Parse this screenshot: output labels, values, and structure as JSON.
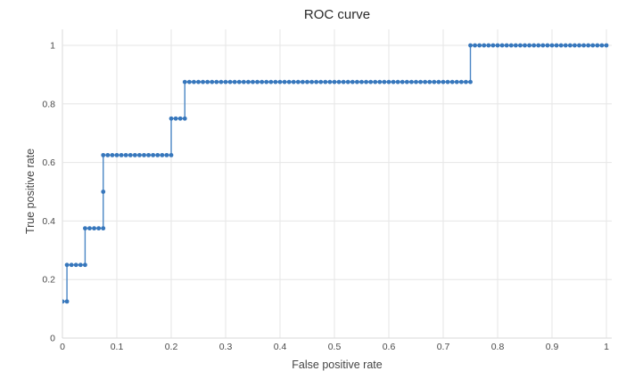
{
  "chart": {
    "title": "ROC curve",
    "x_axis": {
      "label": "False positive rate",
      "ticks": [
        "0",
        "0.1",
        "0.2",
        "0.3",
        "0.4",
        "0.5",
        "0.6",
        "0.7",
        "0.8",
        "0.9",
        "1"
      ],
      "tick_values": [
        0,
        0.1,
        0.2,
        0.3,
        0.4,
        0.5,
        0.6,
        0.7,
        0.8,
        0.9,
        1
      ]
    },
    "y_axis": {
      "label": "True positive rate",
      "ticks": [
        "0",
        "0.2",
        "0.4",
        "0.6",
        "0.8",
        "1"
      ],
      "tick_values": [
        0,
        0.2,
        0.4,
        0.6,
        0.8,
        1
      ]
    },
    "colors": {
      "marker": "#3777bc",
      "line": "#4a86c5",
      "gridline": "#e6e6e6",
      "zeroline": "#d9d9d9",
      "title_text": "#2a2a2a",
      "axis_text": "#4a4a4a",
      "background": "#ffffff"
    }
  },
  "chart_data": {
    "type": "line",
    "subtype": "roc-step-curve-with-markers",
    "title": "ROC curve",
    "xlabel": "False positive rate",
    "ylabel": "True positive rate",
    "xlim": [
      0,
      1.02
    ],
    "ylim": [
      0,
      1.055
    ],
    "grid": true,
    "legend": false,
    "marker_every_fpr_step": true,
    "fpr_step_denominator": 120,
    "tpr_step_denominator": 8,
    "runs": [
      {
        "tpr": 0.125,
        "k_from": 0,
        "k_to": 1,
        "fpr_from": 0.0,
        "fpr_to": 0.0083
      },
      {
        "tpr": 0.25,
        "k_from": 1,
        "k_to": 5,
        "fpr_from": 0.0083,
        "fpr_to": 0.0417
      },
      {
        "tpr": 0.375,
        "k_from": 5,
        "k_to": 9,
        "fpr_from": 0.0417,
        "fpr_to": 0.075
      },
      {
        "tpr": 0.5,
        "k_from": 9,
        "k_to": 9,
        "fpr_from": 0.075,
        "fpr_to": 0.075
      },
      {
        "tpr": 0.625,
        "k_from": 9,
        "k_to": 24,
        "fpr_from": 0.075,
        "fpr_to": 0.2
      },
      {
        "tpr": 0.75,
        "k_from": 24,
        "k_to": 27,
        "fpr_from": 0.2,
        "fpr_to": 0.225
      },
      {
        "tpr": 0.875,
        "k_from": 27,
        "k_to": 90,
        "fpr_from": 0.225,
        "fpr_to": 0.75
      },
      {
        "tpr": 1.0,
        "k_from": 90,
        "k_to": 120,
        "fpr_from": 0.75,
        "fpr_to": 1.0
      }
    ],
    "step_corner_points": [
      [
        0.0,
        0.125
      ],
      [
        0.0083,
        0.25
      ],
      [
        0.0417,
        0.375
      ],
      [
        0.075,
        0.5
      ],
      [
        0.075,
        0.625
      ],
      [
        0.2,
        0.75
      ],
      [
        0.225,
        0.875
      ],
      [
        0.75,
        1.0
      ],
      [
        1.0,
        1.0
      ]
    ]
  }
}
